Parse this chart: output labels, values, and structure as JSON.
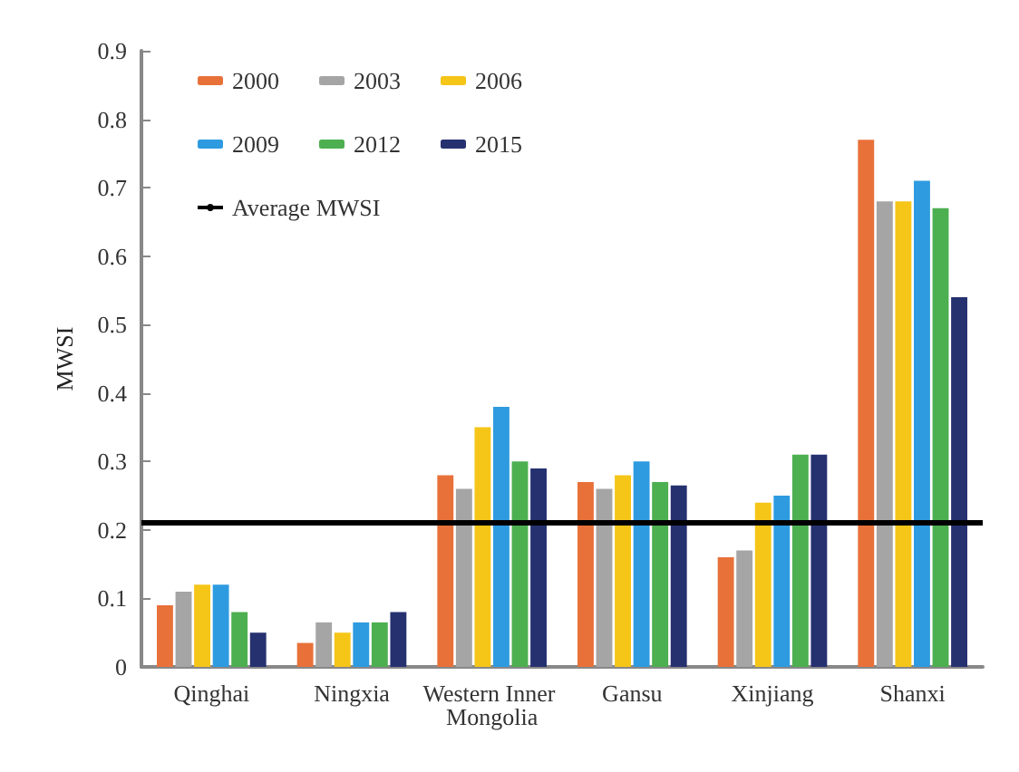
{
  "chart_data": {
    "type": "bar",
    "ylabel": "MWSI",
    "categories": [
      "Qinghai",
      "Ningxia",
      "Western Inner Mongolia",
      "Gansu",
      "Xinjiang",
      "Shanxi"
    ],
    "series": [
      {
        "name": "2000",
        "color": "#e8713a",
        "values": [
          0.09,
          0.035,
          0.28,
          0.27,
          0.16,
          0.77
        ]
      },
      {
        "name": "2003",
        "color": "#a5a5a5",
        "values": [
          0.11,
          0.065,
          0.26,
          0.26,
          0.17,
          0.68
        ]
      },
      {
        "name": "2006",
        "color": "#f5c518",
        "values": [
          0.12,
          0.05,
          0.35,
          0.28,
          0.24,
          0.68
        ]
      },
      {
        "name": "2009",
        "color": "#2e9be0",
        "values": [
          0.12,
          0.065,
          0.38,
          0.3,
          0.25,
          0.71
        ]
      },
      {
        "name": "2012",
        "color": "#4caf50",
        "values": [
          0.08,
          0.065,
          0.3,
          0.27,
          0.31,
          0.67
        ]
      },
      {
        "name": "2015",
        "color": "#263170",
        "values": [
          0.05,
          0.08,
          0.29,
          0.265,
          0.31,
          0.54
        ]
      }
    ],
    "ref_lines": [
      {
        "axis": "y",
        "value": 0.21,
        "label": "Average MWSI",
        "color": "#000000"
      }
    ],
    "ylim": [
      0,
      0.9
    ],
    "yticks": [
      0,
      0.1,
      0.2,
      0.3,
      0.4,
      0.5,
      0.6,
      0.7,
      0.8,
      0.9
    ],
    "grid": false,
    "legend": "top left"
  }
}
